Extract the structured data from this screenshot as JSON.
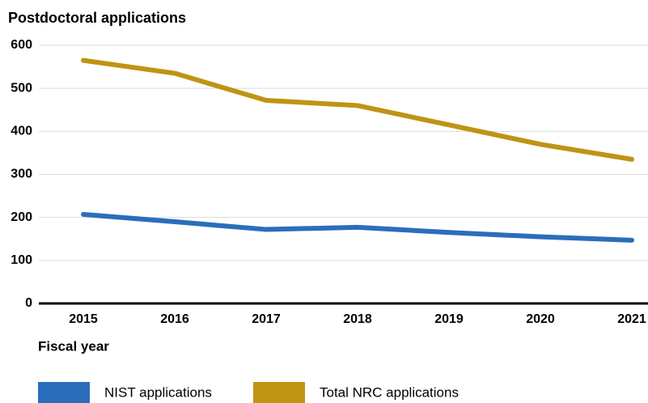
{
  "chart_data": {
    "type": "line",
    "title": "Postdoctoral applications",
    "x_label": "Fiscal year",
    "categories": [
      "2015",
      "2016",
      "2017",
      "2018",
      "2019",
      "2020",
      "2021"
    ],
    "series": [
      {
        "name": "NIST applications",
        "color": "#2a6ebb",
        "values": [
          207,
          190,
          172,
          177,
          165,
          155,
          147
        ]
      },
      {
        "name": "Total NRC applications",
        "color": "#bf9414",
        "values": [
          565,
          535,
          472,
          460,
          415,
          370,
          335
        ]
      }
    ],
    "ylim": [
      0,
      600
    ],
    "yticks": [
      0,
      100,
      200,
      300,
      400,
      500,
      600
    ],
    "grid": true
  }
}
